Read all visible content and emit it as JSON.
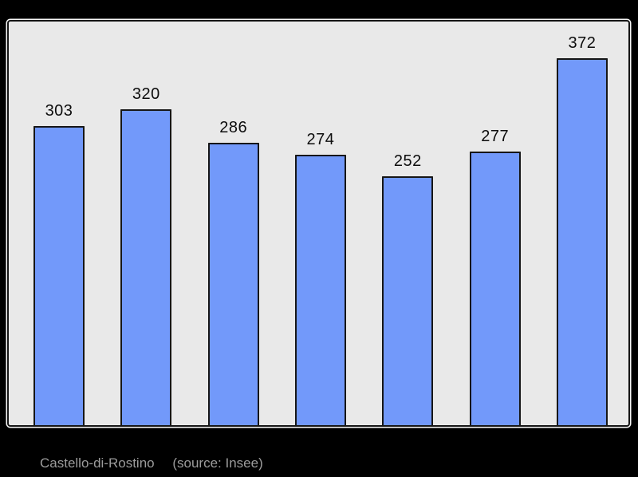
{
  "chart_data": {
    "type": "bar",
    "title": "Castello-di-Rostino",
    "source": "(source: Insee)",
    "categories": [
      "",
      "",
      "",
      "",
      "",
      "",
      ""
    ],
    "values": [
      303,
      320,
      286,
      274,
      252,
      277,
      372
    ],
    "value_labels": [
      "303",
      "320",
      "286",
      "274",
      "252",
      "277",
      "372"
    ],
    "xlabel": "",
    "ylabel": "",
    "ylim": [
      0,
      410
    ],
    "grid": false,
    "legend": false,
    "value_labels_position": "above-bars",
    "colors": {
      "bar_fill": "#7299fa",
      "bar_border": "#161616",
      "plot_background": "#e9e9e9",
      "canvas_background": "#000000",
      "panel_outline": "#f7f7f7",
      "value_label_text": "#0d0d0d",
      "caption_text": "#9c9c9c"
    }
  }
}
